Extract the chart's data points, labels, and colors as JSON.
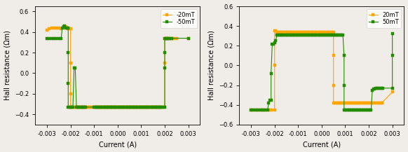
{
  "plot1": {
    "xlabel": "Current (A)",
    "ylabel": "Hall resistance (Ωm)",
    "xlim": [
      -0.0035,
      0.0035
    ],
    "ylim": [
      -0.5,
      0.65
    ],
    "legend": [
      "-20mT",
      "-50mT"
    ],
    "orange_color": "#FFA500",
    "green_color": "#228B00",
    "orange_x": [
      -0.003,
      -0.0029,
      -0.0028,
      -0.0027,
      -0.0026,
      -0.0025,
      -0.0024,
      -0.0023,
      -0.0022,
      -0.00215,
      -0.0021,
      -0.00205,
      -0.002,
      -0.002,
      -0.002,
      -0.002,
      -0.00195,
      -0.0019,
      -0.00185,
      -0.0018,
      -0.00175,
      -0.0017,
      -0.00165,
      -0.0016,
      -0.00155,
      -0.0015,
      -0.00145,
      -0.0014,
      -0.00135,
      -0.0013,
      -0.00125,
      -0.0012,
      -0.00115,
      -0.0011,
      -0.00105,
      -0.001,
      -0.00095,
      -0.0009,
      -0.00085,
      -0.0008,
      -0.00075,
      -0.0007,
      -0.00065,
      -0.0006,
      -0.00055,
      -0.0005,
      -0.00045,
      -0.0004,
      -0.00035,
      -0.0003,
      -0.00025,
      -0.0002,
      -0.00015,
      -0.0001,
      -5e-05,
      0.0,
      5e-05,
      0.0001,
      0.00015,
      0.0002,
      0.00025,
      0.0003,
      0.00035,
      0.0004,
      0.00045,
      0.0005,
      0.00055,
      0.0006,
      0.00065,
      0.0007,
      0.00075,
      0.0008,
      0.00085,
      0.0009,
      0.00095,
      0.001,
      0.00105,
      0.0011,
      0.00115,
      0.0012,
      0.00125,
      0.0013,
      0.00135,
      0.0014,
      0.00145,
      0.0015,
      0.00155,
      0.0016,
      0.00165,
      0.0017,
      0.00175,
      0.0018,
      0.00185,
      0.0019,
      0.002,
      0.002,
      0.002,
      0.00205,
      0.0021,
      0.00215,
      0.0022,
      0.0023,
      0.0024,
      0.0025,
      0.003
    ],
    "orange_y": [
      0.42,
      0.43,
      0.44,
      0.44,
      0.44,
      0.44,
      0.43,
      0.44,
      0.45,
      0.44,
      0.43,
      0.43,
      0.43,
      0.1,
      -0.2,
      -0.33,
      -0.33,
      -0.33,
      -0.33,
      -0.33,
      -0.33,
      -0.33,
      -0.33,
      -0.33,
      -0.33,
      -0.33,
      -0.33,
      -0.33,
      -0.33,
      -0.33,
      -0.33,
      -0.33,
      -0.33,
      -0.33,
      -0.33,
      -0.33,
      -0.33,
      -0.33,
      -0.33,
      -0.33,
      -0.33,
      -0.33,
      -0.33,
      -0.33,
      -0.33,
      -0.33,
      -0.33,
      -0.33,
      -0.33,
      -0.33,
      -0.33,
      -0.33,
      -0.33,
      -0.33,
      -0.33,
      -0.33,
      -0.33,
      -0.33,
      -0.33,
      -0.33,
      -0.33,
      -0.33,
      -0.33,
      -0.33,
      -0.33,
      -0.33,
      -0.33,
      -0.33,
      -0.33,
      -0.33,
      -0.33,
      -0.33,
      -0.33,
      -0.33,
      -0.33,
      -0.33,
      -0.33,
      -0.33,
      -0.33,
      -0.33,
      -0.33,
      -0.33,
      -0.33,
      -0.33,
      -0.33,
      -0.33,
      -0.33,
      -0.33,
      -0.33,
      -0.33,
      -0.33,
      -0.33,
      -0.33,
      -0.33,
      -0.33,
      0.1,
      0.34,
      0.34,
      0.34,
      0.34,
      0.34,
      0.34,
      0.34,
      0.34,
      0.34
    ],
    "green_x": [
      -0.003,
      -0.0029,
      -0.0028,
      -0.0027,
      -0.0026,
      -0.0025,
      -0.0024,
      -0.00235,
      -0.0023,
      -0.00225,
      -0.0022,
      -0.00215,
      -0.0021,
      -0.0021,
      -0.0021,
      -0.0021,
      -0.00205,
      -0.002,
      -0.00195,
      -0.0019,
      -0.00185,
      -0.0018,
      -0.00175,
      -0.0017,
      -0.00165,
      -0.0016,
      -0.00155,
      -0.0015,
      -0.00145,
      -0.0014,
      -0.00135,
      -0.001,
      -0.00095,
      -0.0009,
      -0.00085,
      -0.0008,
      -0.00075,
      -0.0007,
      -0.00065,
      -0.0006,
      -0.00055,
      -0.0005,
      -0.00045,
      -0.0004,
      -0.00035,
      -0.0003,
      -0.00025,
      -0.0002,
      -0.00015,
      -0.0001,
      -5e-05,
      0.0,
      5e-05,
      0.0001,
      0.00015,
      0.0002,
      0.00025,
      0.0003,
      0.00035,
      0.0004,
      0.00045,
      0.0005,
      0.00055,
      0.0006,
      0.00065,
      0.0007,
      0.00075,
      0.0008,
      0.00085,
      0.0009,
      0.00095,
      0.001,
      0.00105,
      0.0011,
      0.00115,
      0.0012,
      0.00125,
      0.0013,
      0.00135,
      0.0014,
      0.00145,
      0.0015,
      0.00155,
      0.0016,
      0.00165,
      0.0017,
      0.00175,
      0.0018,
      0.00185,
      0.0019,
      0.002,
      0.002,
      0.002,
      0.002,
      0.00205,
      0.0021,
      0.00215,
      0.0022,
      0.0023,
      0.003
    ],
    "green_y": [
      0.34,
      0.34,
      0.34,
      0.34,
      0.34,
      0.34,
      0.34,
      0.44,
      0.45,
      0.46,
      0.44,
      0.44,
      0.44,
      0.2,
      -0.1,
      -0.33,
      -0.33,
      -0.33,
      -0.33,
      -0.33,
      0.05,
      0.05,
      -0.33,
      -0.33,
      -0.33,
      -0.33,
      -0.33,
      -0.33,
      -0.33,
      -0.33,
      -0.33,
      -0.33,
      -0.33,
      -0.33,
      -0.33,
      -0.33,
      -0.33,
      -0.33,
      -0.33,
      -0.33,
      -0.33,
      -0.33,
      -0.33,
      -0.33,
      -0.33,
      -0.33,
      -0.33,
      -0.33,
      -0.33,
      -0.33,
      -0.33,
      -0.33,
      -0.33,
      -0.33,
      -0.33,
      -0.33,
      -0.33,
      -0.33,
      -0.33,
      -0.33,
      -0.33,
      -0.33,
      -0.33,
      -0.33,
      -0.33,
      -0.33,
      -0.33,
      -0.33,
      -0.33,
      -0.33,
      -0.33,
      -0.33,
      -0.33,
      -0.33,
      -0.33,
      -0.33,
      -0.33,
      -0.33,
      -0.33,
      -0.33,
      -0.33,
      -0.33,
      -0.33,
      -0.33,
      -0.33,
      -0.33,
      -0.33,
      -0.33,
      -0.33,
      -0.33,
      -0.33,
      0.05,
      0.2,
      0.34,
      0.34,
      0.34,
      0.34,
      0.34,
      0.34,
      0.34
    ]
  },
  "plot2": {
    "xlabel": "Current (A)",
    "ylabel": "Hall resistance (Ωm)",
    "xlim": [
      -0.0035,
      0.0035
    ],
    "ylim": [
      -0.6,
      0.6
    ],
    "legend": [
      "20mT",
      "50mT"
    ],
    "orange_color": "#FFA500",
    "green_color": "#228B00",
    "orange_x": [
      -0.003,
      -0.0029,
      -0.0028,
      -0.0027,
      -0.0026,
      -0.0025,
      -0.0024,
      -0.0023,
      -0.0022,
      -0.00215,
      -0.002,
      -0.002,
      -0.002,
      -0.00195,
      -0.0019,
      -0.00185,
      -0.0018,
      -0.00175,
      -0.0017,
      -0.00165,
      -0.0016,
      -0.00155,
      -0.0015,
      -0.00145,
      -0.0014,
      -0.00135,
      -0.0013,
      -0.00125,
      -0.0012,
      -0.00115,
      -0.0011,
      -0.00105,
      -0.001,
      -0.00095,
      -0.0009,
      -0.00085,
      -0.0008,
      -0.00075,
      -0.0007,
      -0.00065,
      -0.0006,
      -0.00055,
      -0.0005,
      -0.00045,
      -0.0004,
      -0.00035,
      -0.0003,
      -0.00025,
      -0.0002,
      -0.00015,
      -0.0001,
      -5e-05,
      0.0,
      5e-05,
      0.0001,
      0.00015,
      0.0002,
      0.00025,
      0.0003,
      0.00035,
      0.0004,
      0.00045,
      0.0005,
      0.0005,
      0.0005,
      0.0005,
      0.00055,
      0.0006,
      0.00065,
      0.0007,
      0.00075,
      0.0008,
      0.00085,
      0.0009,
      0.00095,
      0.001,
      0.00105,
      0.0011,
      0.00115,
      0.0012,
      0.00125,
      0.0013,
      0.00135,
      0.0014,
      0.00145,
      0.0015,
      0.00155,
      0.0016,
      0.00165,
      0.0017,
      0.00175,
      0.0018,
      0.00185,
      0.0019,
      0.00195,
      0.002,
      0.00205,
      0.0021,
      0.00215,
      0.0022,
      0.0023,
      0.0024,
      0.00245,
      0.0025,
      0.00255,
      0.003
    ],
    "orange_y": [
      -0.45,
      -0.45,
      -0.45,
      -0.45,
      -0.45,
      -0.45,
      -0.45,
      -0.45,
      -0.45,
      -0.45,
      -0.45,
      0.0,
      0.35,
      0.35,
      0.34,
      0.34,
      0.34,
      0.34,
      0.34,
      0.34,
      0.34,
      0.34,
      0.34,
      0.34,
      0.34,
      0.34,
      0.34,
      0.34,
      0.34,
      0.34,
      0.34,
      0.34,
      0.34,
      0.34,
      0.34,
      0.34,
      0.34,
      0.34,
      0.34,
      0.34,
      0.34,
      0.34,
      0.34,
      0.34,
      0.34,
      0.34,
      0.34,
      0.34,
      0.34,
      0.34,
      0.34,
      0.34,
      0.34,
      0.34,
      0.34,
      0.34,
      0.34,
      0.34,
      0.34,
      0.34,
      0.34,
      0.34,
      0.34,
      0.1,
      -0.2,
      -0.38,
      -0.38,
      -0.38,
      -0.38,
      -0.38,
      -0.38,
      -0.38,
      -0.38,
      -0.38,
      -0.38,
      -0.38,
      -0.38,
      -0.38,
      -0.38,
      -0.38,
      -0.38,
      -0.38,
      -0.38,
      -0.38,
      -0.38,
      -0.38,
      -0.38,
      -0.38,
      -0.38,
      -0.38,
      -0.38,
      -0.38,
      -0.38,
      -0.38,
      -0.38,
      -0.38,
      -0.38,
      -0.38,
      -0.38,
      -0.38,
      -0.38,
      -0.38,
      -0.38,
      -0.38,
      -0.38,
      -0.27
    ],
    "green_x": [
      -0.003,
      -0.0029,
      -0.0028,
      -0.0027,
      -0.0026,
      -0.0025,
      -0.0024,
      -0.0023,
      -0.00225,
      -0.0022,
      -0.00215,
      -0.00215,
      -0.0021,
      -0.00205,
      -0.002,
      -0.00195,
      -0.0019,
      -0.00185,
      -0.0018,
      -0.00175,
      -0.0017,
      -0.00165,
      -0.0016,
      -0.00155,
      -0.0015,
      -0.00145,
      -0.0014,
      -0.00135,
      -0.0013,
      -0.00125,
      -0.0012,
      -0.00115,
      -0.0011,
      -0.00105,
      -0.001,
      -0.00095,
      -0.0009,
      -0.00085,
      -0.0008,
      -0.00075,
      -0.0007,
      -0.00065,
      -0.0006,
      -0.00055,
      -0.0005,
      -0.00045,
      -0.0004,
      -0.00035,
      -0.0003,
      -0.00025,
      -0.0002,
      -0.00015,
      -0.0001,
      -5e-05,
      0.0,
      5e-05,
      0.0001,
      0.00015,
      0.0002,
      0.00025,
      0.0003,
      0.00035,
      0.0004,
      0.00045,
      0.0005,
      0.00055,
      0.0006,
      0.00065,
      0.0007,
      0.00075,
      0.0008,
      0.00085,
      0.0009,
      0.00095,
      0.00095,
      0.00095,
      0.001,
      0.00105,
      0.0011,
      0.00115,
      0.0012,
      0.00125,
      0.0013,
      0.00135,
      0.0014,
      0.00145,
      0.0015,
      0.00155,
      0.0016,
      0.00165,
      0.0017,
      0.00175,
      0.0018,
      0.00185,
      0.0019,
      0.00195,
      0.002,
      0.00205,
      0.0021,
      0.00215,
      0.0022,
      0.00225,
      0.0023,
      0.00235,
      0.0024,
      0.00245,
      0.0025,
      0.00255,
      0.0026,
      0.003,
      0.003,
      0.003
    ],
    "green_y": [
      -0.45,
      -0.45,
      -0.45,
      -0.45,
      -0.45,
      -0.45,
      -0.45,
      -0.45,
      -0.38,
      -0.35,
      -0.35,
      -0.08,
      0.22,
      0.22,
      0.23,
      0.25,
      0.31,
      0.31,
      0.31,
      0.31,
      0.31,
      0.31,
      0.31,
      0.31,
      0.31,
      0.31,
      0.31,
      0.31,
      0.31,
      0.31,
      0.31,
      0.31,
      0.31,
      0.31,
      0.31,
      0.31,
      0.31,
      0.31,
      0.31,
      0.31,
      0.31,
      0.31,
      0.31,
      0.31,
      0.31,
      0.31,
      0.31,
      0.31,
      0.31,
      0.31,
      0.31,
      0.31,
      0.31,
      0.31,
      0.31,
      0.31,
      0.31,
      0.31,
      0.31,
      0.31,
      0.31,
      0.31,
      0.31,
      0.31,
      0.31,
      0.31,
      0.31,
      0.31,
      0.31,
      0.31,
      0.31,
      0.31,
      0.31,
      0.1,
      -0.2,
      -0.45,
      -0.45,
      -0.45,
      -0.45,
      -0.45,
      -0.45,
      -0.45,
      -0.45,
      -0.45,
      -0.45,
      -0.45,
      -0.45,
      -0.45,
      -0.45,
      -0.45,
      -0.45,
      -0.45,
      -0.45,
      -0.45,
      -0.45,
      -0.45,
      -0.45,
      -0.45,
      -0.45,
      -0.25,
      -0.24,
      -0.24,
      -0.23,
      -0.23,
      -0.23,
      -0.23,
      -0.23,
      -0.23,
      -0.23,
      -0.23,
      0.1,
      0.32
    ]
  },
  "background_color": "#f0ece8",
  "marker": "s",
  "markersize": 2.5,
  "linewidth": 0.8,
  "tick_fontsize": 6,
  "label_fontsize": 7,
  "legend_fontsize": 6
}
